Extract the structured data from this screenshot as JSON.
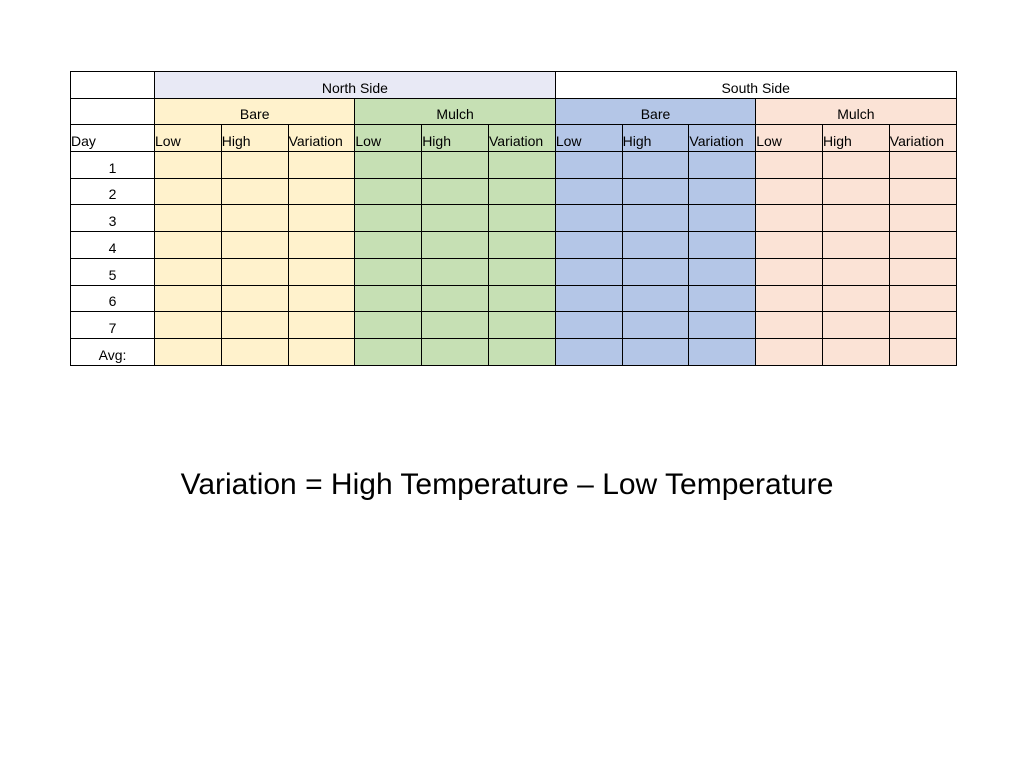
{
  "table": {
    "sides": [
      {
        "label": "North Side"
      },
      {
        "label": "South Side"
      }
    ],
    "groups": [
      {
        "label": "Bare"
      },
      {
        "label": "Mulch"
      },
      {
        "label": "Bare"
      },
      {
        "label": "Mulch"
      }
    ],
    "day_header": "Day",
    "column_headers": [
      "Low",
      "High",
      "Variation",
      "Low",
      "High",
      "Variation",
      "Low",
      "High",
      "Variation",
      "Low",
      "High",
      "Variation"
    ],
    "rows": [
      {
        "label": "1"
      },
      {
        "label": "2"
      },
      {
        "label": "3"
      },
      {
        "label": "4"
      },
      {
        "label": "5"
      },
      {
        "label": "6"
      },
      {
        "label": "7"
      },
      {
        "label": "Avg:"
      }
    ]
  },
  "formula": "Variation = High Temperature – Low Temperature",
  "colors": {
    "north_side_header": "#e8e9f5",
    "north_bare": "#fff2cc",
    "north_mulch": "#c6e0b4",
    "south_bare": "#b4c6e7",
    "south_mulch": "#fbe3d6"
  }
}
